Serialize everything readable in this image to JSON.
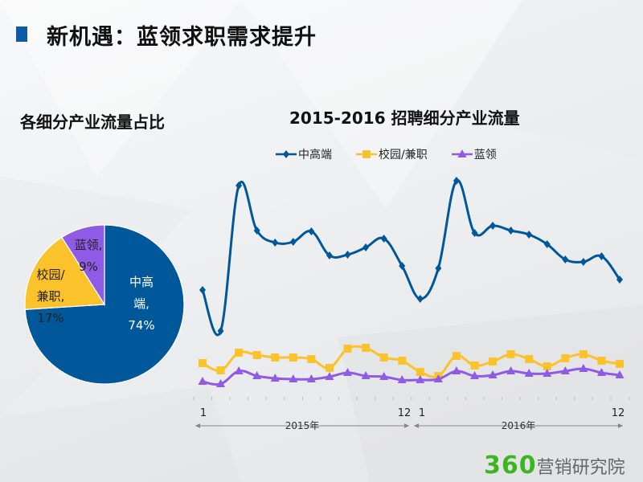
{
  "title": "新机遇：蓝领求职需求提升",
  "pie": {
    "title": "各细分产业流量占比"
  },
  "line": {
    "title": "2015-2016 招聘细分产业流量"
  },
  "logo": {
    "number": "360",
    "text": "营销研究院"
  },
  "chart_data": [
    {
      "type": "pie",
      "title": "各细分产业流量占比",
      "slices": [
        {
          "name": "中高端",
          "value": 74,
          "label_lines": [
            "中高",
            "端,",
            "74%"
          ],
          "color": "#00589a"
        },
        {
          "name": "校园/兼职",
          "value": 17,
          "label_lines": [
            "校园/",
            "兼职,",
            "17%"
          ],
          "color": "#fcc22b"
        },
        {
          "name": "蓝领",
          "value": 9,
          "label_lines": [
            "蓝领,",
            "9%"
          ],
          "color": "#8f5ae6"
        }
      ]
    },
    {
      "type": "line",
      "title": "2015-2016 招聘细分产业流量",
      "legend_position": "top",
      "y_axis_shown": false,
      "grid": false,
      "x_groups": [
        {
          "label": "2015年",
          "first_tick": "1",
          "last_tick": "12"
        },
        {
          "label": "2016年",
          "first_tick": "1",
          "last_tick": "12"
        }
      ],
      "x": [
        "2015-01",
        "2015-02",
        "2015-03",
        "2015-04",
        "2015-05",
        "2015-06",
        "2015-07",
        "2015-08",
        "2015-09",
        "2015-10",
        "2015-11",
        "2015-12",
        "2016-01",
        "2016-02",
        "2016-03",
        "2016-04",
        "2016-05",
        "2016-06",
        "2016-07",
        "2016-08",
        "2016-09",
        "2016-10",
        "2016-11",
        "2016-12"
      ],
      "ylim": [
        0,
        270
      ],
      "series": [
        {
          "name": "中高端",
          "color": "#00589a",
          "marker": "diamond",
          "values": [
            129,
            78,
            259,
            203,
            188,
            189,
            202,
            172,
            173,
            182,
            193,
            159,
            118,
            156,
            265,
            200,
            209,
            203,
            198,
            186,
            167,
            164,
            171,
            142
          ]
        },
        {
          "name": "校园/兼职",
          "color": "#fcc22b",
          "marker": "square",
          "values": [
            38,
            29,
            51,
            48,
            45,
            45,
            43,
            32,
            56,
            57,
            45,
            41,
            27,
            22,
            47,
            35,
            40,
            49,
            43,
            34,
            44,
            49,
            41,
            37
          ]
        },
        {
          "name": "蓝领",
          "color": "#8f5ae6",
          "marker": "triangle",
          "values": [
            15,
            12,
            28,
            22,
            19,
            18,
            18,
            21,
            26,
            22,
            21,
            17,
            17,
            18,
            28,
            22,
            23,
            28,
            25,
            25,
            28,
            31,
            26,
            23
          ]
        }
      ]
    }
  ]
}
